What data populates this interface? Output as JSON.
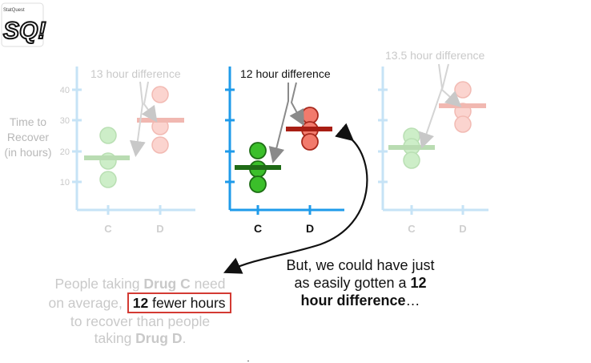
{
  "logo": {
    "text": "SQ!",
    "small_text": "StatQuest"
  },
  "y_axis_label": [
    "Time to",
    "Recover",
    "(in hours)"
  ],
  "y_ticks": [
    "40",
    "30",
    "20",
    "10"
  ],
  "colors": {
    "green": "#3bbf2a",
    "green_mean": "#1f6b16",
    "red": "#f27a6c",
    "red_mean": "#a81e14",
    "axis_blue": "#1f9bea",
    "faded_axis": "#bfe0f5"
  },
  "panels": [
    {
      "annotation": "13 hour difference",
      "x_labels": [
        "C",
        "D"
      ]
    },
    {
      "annotation": "12 hour difference",
      "x_labels": [
        "C",
        "D"
      ]
    },
    {
      "annotation": "13.5 hour difference",
      "x_labels": [
        "C",
        "D"
      ]
    }
  ],
  "bottom_left": {
    "line1_pre": "People taking ",
    "line1_bold": "Drug C",
    "line1_post": " need",
    "line2_pre": "on average, ",
    "box_bold": "12",
    "box_rest": " fewer hours",
    "line3": "to recover than people",
    "line4_pre": "taking ",
    "line4_bold": "Drug D",
    "line4_post": "."
  },
  "bottom_right": {
    "line1": "But, we could have just",
    "line2_pre": "as easily gotten a ",
    "line2_bold": "12",
    "line3_bold": "hour difference",
    "line3_post": "…"
  }
}
